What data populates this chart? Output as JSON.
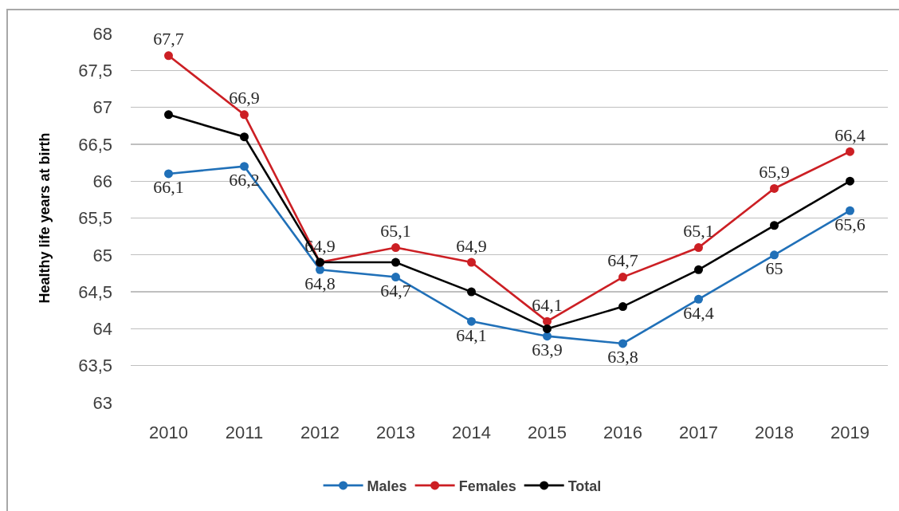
{
  "chart_data": {
    "type": "line",
    "categories": [
      "2010",
      "2011",
      "2012",
      "2013",
      "2014",
      "2015",
      "2016",
      "2017",
      "2018",
      "2019"
    ],
    "ylabel": "Healthy life years at birth",
    "ylim": [
      63,
      68
    ],
    "yticks": [
      63,
      {
        "value": 63.5,
        "label": "63,5"
      },
      64,
      {
        "value": 64.5,
        "label": "64,5"
      },
      65,
      {
        "value": 65.5,
        "label": "65,5"
      },
      66,
      {
        "value": 66.5,
        "label": "66,5"
      },
      67,
      {
        "value": 67.5,
        "label": "67,5"
      },
      68
    ],
    "grid": "y",
    "legend": "bottom",
    "marker": "circle",
    "line_style": "solid",
    "series": [
      {
        "name": "Males",
        "color": "#2070b8",
        "values": [
          66.1,
          66.2,
          64.8,
          64.7,
          64.1,
          63.9,
          63.8,
          64.4,
          65,
          65.6
        ],
        "value_labels": [
          "66,1",
          "66,2",
          "64,8",
          "64,7",
          "64,1",
          "63,9",
          "63,8",
          "64,4",
          "65",
          "65,6"
        ]
      },
      {
        "name": "Females",
        "color": "#cc1f24",
        "values": [
          67.7,
          66.9,
          64.9,
          65.1,
          64.9,
          64.1,
          64.7,
          65.1,
          65.9,
          66.4
        ],
        "value_labels": [
          "67,7",
          "66,9",
          "64,9",
          "65,1",
          "64,9",
          "64,1",
          "64,7",
          "65,1",
          "65,9",
          "66,4"
        ]
      },
      {
        "name": "Total",
        "color": "#000000",
        "values": [
          66.9,
          66.6,
          64.9,
          64.9,
          64.5,
          64.0,
          64.3,
          64.8,
          65.4,
          66.0
        ]
      }
    ]
  }
}
